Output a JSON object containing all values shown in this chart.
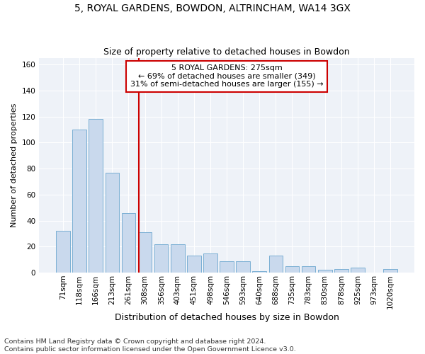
{
  "title1": "5, ROYAL GARDENS, BOWDON, ALTRINCHAM, WA14 3GX",
  "title2": "Size of property relative to detached houses in Bowdon",
  "xlabel": "Distribution of detached houses by size in Bowdon",
  "ylabel": "Number of detached properties",
  "categories": [
    "71sqm",
    "118sqm",
    "166sqm",
    "213sqm",
    "261sqm",
    "308sqm",
    "356sqm",
    "403sqm",
    "451sqm",
    "498sqm",
    "546sqm",
    "593sqm",
    "640sqm",
    "688sqm",
    "735sqm",
    "783sqm",
    "830sqm",
    "878sqm",
    "925sqm",
    "973sqm",
    "1020sqm"
  ],
  "values": [
    32,
    110,
    118,
    77,
    46,
    31,
    22,
    22,
    13,
    15,
    9,
    9,
    1,
    13,
    5,
    5,
    2,
    3,
    4,
    0,
    3
  ],
  "bar_color": "#c9d9ed",
  "bar_edge_color": "#7aafd4",
  "vline_x": 4.62,
  "vline_color": "#cc0000",
  "annotation_text": "5 ROYAL GARDENS: 275sqm\n← 69% of detached houses are smaller (349)\n31% of semi-detached houses are larger (155) →",
  "annotation_box_facecolor": "#ffffff",
  "annotation_box_edgecolor": "#cc0000",
  "footer_text": "Contains HM Land Registry data © Crown copyright and database right 2024.\nContains public sector information licensed under the Open Government Licence v3.0.",
  "ylim": [
    0,
    165
  ],
  "background_color": "#eef2f8",
  "grid_color": "#ffffff",
  "title1_fontsize": 10,
  "title2_fontsize": 9,
  "xlabel_fontsize": 9,
  "ylabel_fontsize": 8,
  "tick_fontsize": 7.5,
  "annotation_fontsize": 8,
  "footer_fontsize": 6.8
}
